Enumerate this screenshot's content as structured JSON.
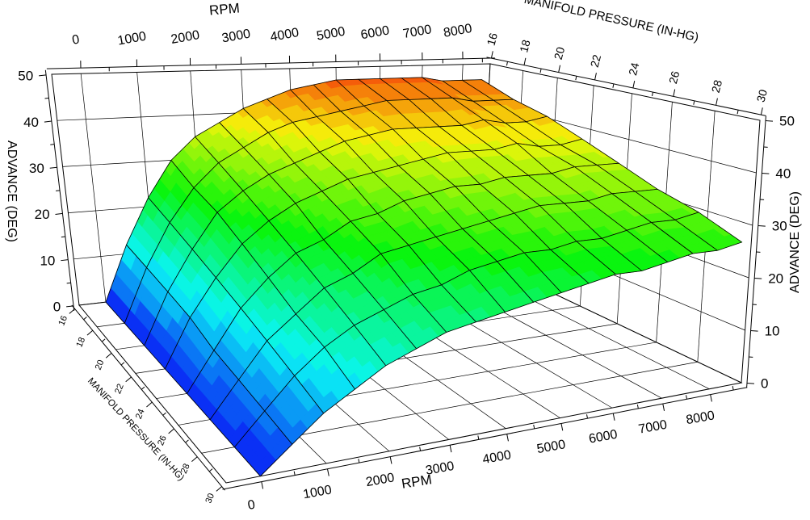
{
  "page": {
    "background": "#ffffff"
  },
  "chart_data": {
    "type": "surface",
    "x_axis": {
      "label": "RPM",
      "min": 0,
      "max": 8500,
      "major_tick_step": 1000,
      "minor_tick_step": 500,
      "tick_labels": [
        "0",
        "1000",
        "2000",
        "3000",
        "4000",
        "5000",
        "6000",
        "7000",
        "8000"
      ],
      "tick_values": [
        0,
        1000,
        2000,
        3000,
        4000,
        5000,
        6000,
        7000,
        8000
      ],
      "minor_tick_values": [
        500,
        1500,
        2500,
        3500,
        4500,
        5500,
        6500,
        7500,
        8500
      ]
    },
    "y_axis": {
      "label": "MANIFOLD PRESSURE (IN-HG)",
      "min": 16,
      "max": 30,
      "major_tick_step": 2,
      "minor_tick_step": 1,
      "tick_labels": [
        "16",
        "18",
        "20",
        "22",
        "24",
        "26",
        "28",
        "30"
      ],
      "tick_values": [
        16,
        18,
        20,
        22,
        24,
        26,
        28,
        30
      ],
      "minor_tick_values": [
        17,
        19,
        21,
        23,
        25,
        27,
        29
      ]
    },
    "z_axis": {
      "label": "ADVANCE (DEG)",
      "min": 0,
      "max": 50,
      "major_tick_step": 10,
      "minor_tick_step": 5,
      "tick_labels": [
        "0",
        "10",
        "20",
        "30",
        "40",
        "50"
      ],
      "tick_values": [
        0,
        10,
        20,
        30,
        40,
        50
      ],
      "minor_tick_values": [
        5,
        15,
        25,
        35,
        45
      ]
    },
    "rpm_values": [
      0,
      500,
      1000,
      1500,
      2000,
      2500,
      3000,
      3500,
      4000,
      4500,
      5000,
      5500,
      6000,
      6500,
      7000,
      7500,
      8000,
      8500
    ],
    "map_values": [
      16,
      18,
      20,
      22,
      24,
      26,
      28,
      30
    ],
    "advance_table_by_map_row": [
      [
        0,
        12,
        22,
        30,
        35,
        38,
        41,
        43,
        45,
        46,
        47,
        47,
        47,
        47,
        47,
        46,
        46,
        46
      ],
      [
        0,
        11,
        20,
        27,
        32,
        35,
        38,
        40,
        41,
        42,
        43,
        44,
        44,
        44,
        44,
        43,
        43,
        43
      ],
      [
        0,
        10,
        18,
        25,
        29,
        32,
        34,
        36,
        38,
        39,
        40,
        40,
        40,
        40,
        41,
        40,
        40,
        41
      ],
      [
        0,
        9,
        16,
        22,
        26,
        29,
        31,
        33,
        34,
        35,
        36,
        37,
        37,
        37,
        38,
        37,
        37,
        38
      ],
      [
        0,
        7,
        14,
        19,
        23,
        25,
        28,
        29,
        31,
        32,
        33,
        33,
        34,
        34,
        34,
        35,
        35,
        35
      ],
      [
        0,
        6,
        12,
        16,
        20,
        22,
        25,
        26,
        27,
        28,
        29,
        30,
        31,
        31,
        31,
        32,
        32,
        32
      ],
      [
        0,
        5,
        10,
        14,
        17,
        19,
        21,
        22,
        24,
        25,
        26,
        26,
        27,
        27,
        28,
        29,
        29,
        30
      ],
      [
        0,
        4,
        8,
        11,
        14,
        16,
        18,
        19,
        20,
        21,
        22,
        23,
        24,
        24,
        25,
        26,
        26,
        27
      ]
    ],
    "colormap": {
      "type": "rainbow-banded",
      "low_color": "#0a42f4",
      "high_color": "#ee5f11",
      "band_size_deg": 2
    },
    "mesh_color": "#000000",
    "axis_color": "#000000",
    "grid": "on",
    "legend": "none"
  }
}
